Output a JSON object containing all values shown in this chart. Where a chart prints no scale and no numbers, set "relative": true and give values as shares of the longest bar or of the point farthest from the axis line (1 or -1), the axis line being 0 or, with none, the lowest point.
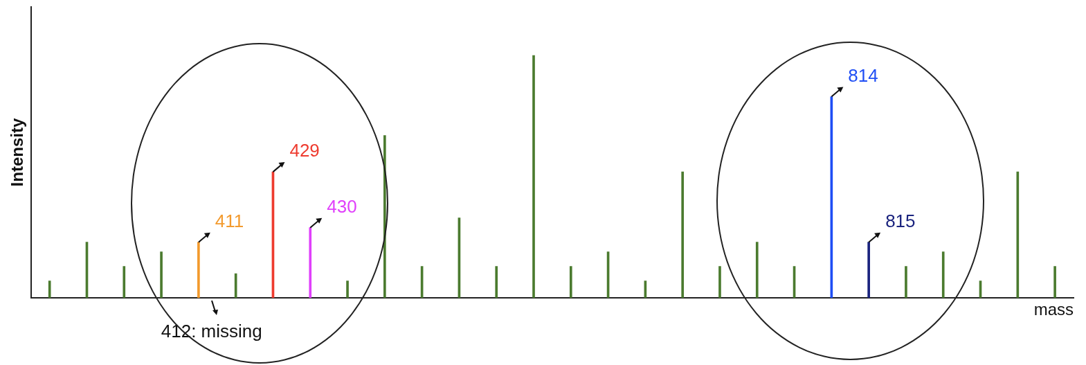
{
  "chart_data": {
    "type": "bar",
    "relative": true,
    "xlabel": "mass",
    "ylabel": "Intensity",
    "categories": [
      null,
      null,
      null,
      null,
      null,
      null,
      null,
      null,
      null,
      null,
      null,
      null,
      null,
      null,
      null,
      null,
      null,
      null,
      null,
      null,
      null,
      null,
      null,
      null,
      null,
      null,
      null,
      null
    ],
    "series": [
      {
        "color": "#4b7b2f",
        "values": [
          0.07,
          0.23,
          0.13,
          0.19,
          null,
          0.1,
          null,
          null,
          0.07,
          0.67,
          0.13,
          0.33,
          0.13,
          1.0,
          0.13,
          0.19,
          0.07,
          0.52,
          0.13,
          0.23,
          0.13,
          null,
          null,
          0.13,
          0.19,
          0.07,
          0.52,
          0.13
        ]
      },
      {
        "name": "411",
        "color": "#f39a2d",
        "values": [
          null,
          null,
          null,
          null,
          0.23,
          null,
          null,
          null,
          null,
          null,
          null,
          null,
          null,
          null,
          null,
          null,
          null,
          null,
          null,
          null,
          null,
          null,
          null,
          null,
          null,
          null,
          null,
          null
        ]
      },
      {
        "name": "429",
        "color": "#ee3b2f",
        "values": [
          null,
          null,
          null,
          null,
          null,
          null,
          0.52,
          null,
          null,
          null,
          null,
          null,
          null,
          null,
          null,
          null,
          null,
          null,
          null,
          null,
          null,
          null,
          null,
          null,
          null,
          null,
          null,
          null
        ]
      },
      {
        "name": "430",
        "color": "#e040fb",
        "values": [
          null,
          null,
          null,
          null,
          null,
          null,
          null,
          0.29,
          null,
          null,
          null,
          null,
          null,
          null,
          null,
          null,
          null,
          null,
          null,
          null,
          null,
          null,
          null,
          null,
          null,
          null,
          null,
          null
        ]
      },
      {
        "name": "814",
        "color": "#1f4ef5",
        "values": [
          null,
          null,
          null,
          null,
          null,
          null,
          null,
          null,
          null,
          null,
          null,
          null,
          null,
          null,
          null,
          null,
          null,
          null,
          null,
          null,
          null,
          0.83,
          null,
          null,
          null,
          null,
          null,
          null
        ]
      },
      {
        "name": "815",
        "color": "#1a237e",
        "values": [
          null,
          null,
          null,
          null,
          null,
          null,
          null,
          null,
          null,
          null,
          null,
          null,
          null,
          null,
          null,
          null,
          null,
          null,
          null,
          null,
          null,
          null,
          0.23,
          null,
          null,
          null,
          null,
          null
        ]
      }
    ],
    "annotations": [
      "412: missing"
    ],
    "stacked": true,
    "grid": false,
    "legend": false
  }
}
